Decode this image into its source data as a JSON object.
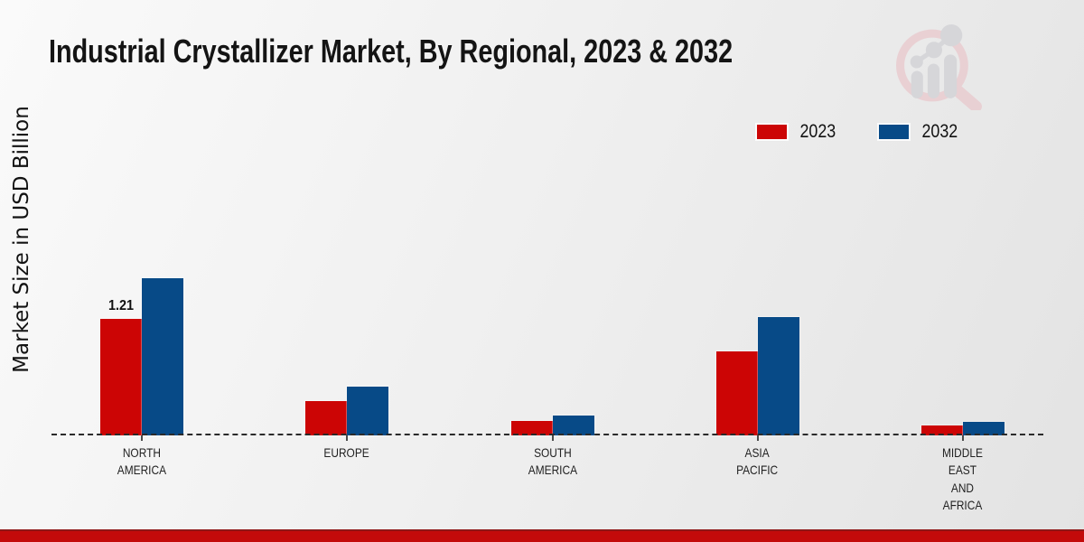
{
  "page": {
    "title": "Industrial Crystallizer Market, By Regional, 2023 & 2032"
  },
  "y_axis_label": "Market Size in USD Billion",
  "legend": [
    {
      "label": "2023",
      "color": "#cc0505"
    },
    {
      "label": "2032",
      "color": "#074a87"
    }
  ],
  "watermark_icon": "market-research-future-logo",
  "colors": {
    "series_2023": "#cc0505",
    "series_2032": "#074a87",
    "footer_band": "#c30a0a",
    "footer_line": "#8f1616",
    "baseline": "#2a2a2a",
    "background_start": "#fafafa",
    "background_end": "#e3e3e3"
  },
  "chart_data": {
    "type": "bar",
    "title": "Industrial Crystallizer Market, By Regional, 2023 & 2032",
    "ylabel": "Market Size in USD Billion",
    "unit": "USD Billion",
    "categories": [
      "NORTH\nAMERICA",
      "EUROPE",
      "SOUTH\nAMERICA",
      "ASIA\nPACIFIC",
      "MIDDLE\nEAST\nAND\nAFRICA"
    ],
    "series": [
      {
        "name": "2023",
        "color": "#cc0505",
        "values": [
          1.21,
          0.36,
          0.15,
          0.87,
          0.1
        ]
      },
      {
        "name": "2032",
        "color": "#074a87",
        "values": [
          1.63,
          0.51,
          0.21,
          1.23,
          0.14
        ]
      }
    ],
    "annotations": [
      {
        "category_index": 0,
        "series_index": 0,
        "text": "1.21"
      }
    ],
    "baseline_style": "dashed",
    "grid": false,
    "legend_position": "top-right",
    "ylim": [
      0,
      1.8
    ]
  }
}
